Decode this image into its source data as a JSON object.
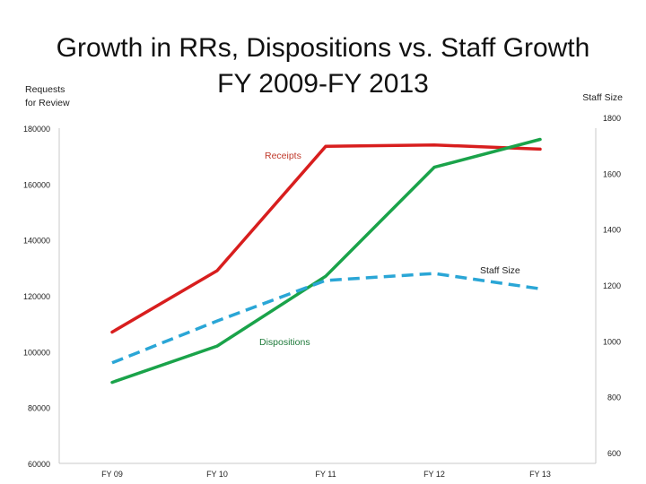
{
  "chart_data": {
    "type": "line",
    "title_line1": "Growth in RRs, Dispositions vs. Staff Growth",
    "title_line2": "FY 2009-FY 2013",
    "ylabel_left_line1": "Requests",
    "ylabel_left_line2": "for Review",
    "ylabel_right": "Staff Size",
    "categories": [
      "FY 09",
      "FY 10",
      "FY 11",
      "FY 12",
      "FY 13"
    ],
    "y_left": {
      "min": 60000,
      "max": 180000,
      "ticks": [
        "180000",
        "160000",
        "140000",
        "120000",
        "100000",
        "80000",
        "60000"
      ]
    },
    "y_right": {
      "min": 600,
      "max": 1800,
      "ticks": [
        "1800",
        "1600",
        "1400",
        "1200",
        "1000",
        "800",
        "600"
      ]
    },
    "series": [
      {
        "name": "Receipts",
        "axis": "left",
        "color": "#d81e1e",
        "dashed": false,
        "values": [
          107000,
          129000,
          173500,
          174000,
          172500
        ]
      },
      {
        "name": "Dispositions",
        "axis": "left",
        "color": "#1aa34a",
        "dashed": false,
        "values": [
          89000,
          102000,
          127000,
          166000,
          176000
        ]
      },
      {
        "name": "Staff Size",
        "axis": "right",
        "color": "#2aa6d6",
        "dashed": true,
        "values": [
          960,
          1110,
          1255,
          1280,
          1225
        ]
      }
    ],
    "annotations": [
      {
        "text": "Receipts",
        "color": "#c0392b"
      },
      {
        "text": "Dispositions",
        "color": "#1e7a3a"
      },
      {
        "text": "Staff Size",
        "color": "#222222"
      }
    ],
    "grid": false,
    "legend": "none"
  }
}
